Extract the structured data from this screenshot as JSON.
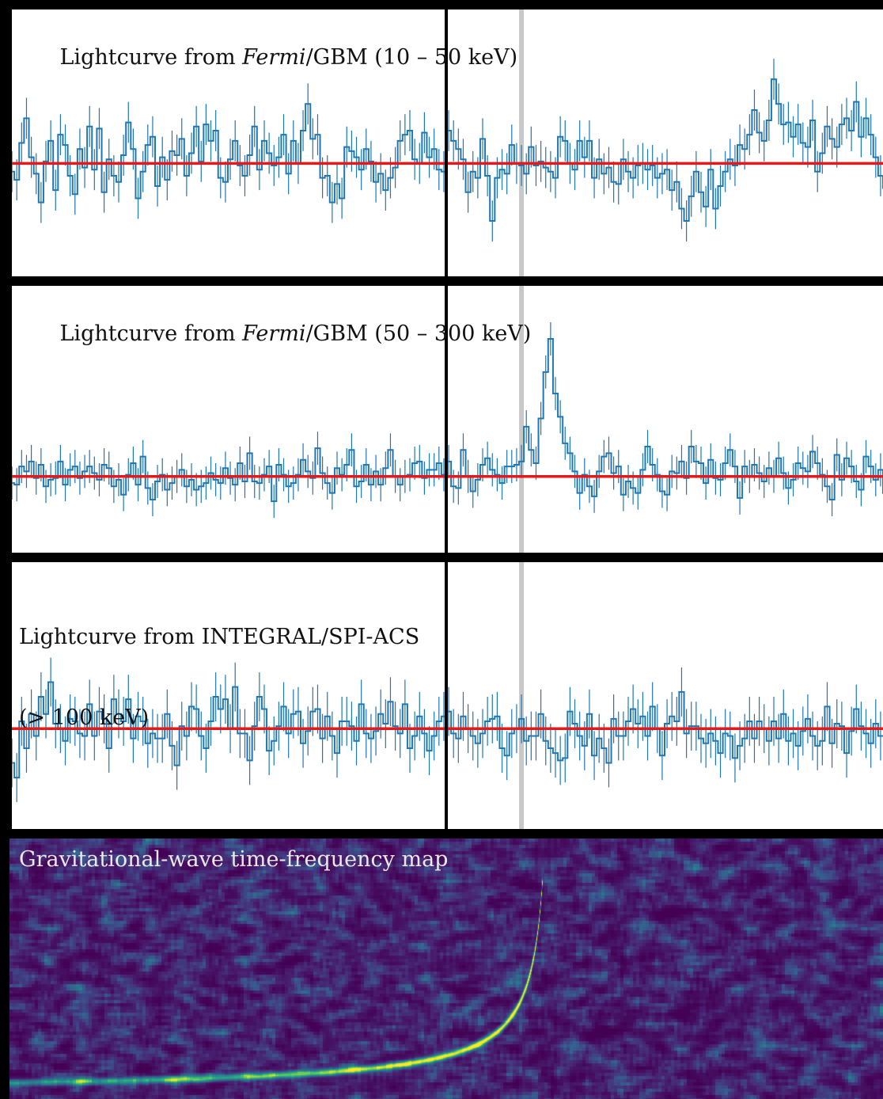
{
  "colors": {
    "lightcurve": "#1f77b4",
    "baseline": "#e31a1c",
    "event_marker": "#c8c8c8",
    "divider": "#000000",
    "frame": "#000000"
  },
  "chart_data": [
    {
      "type": "line",
      "instrument": "Fermi/GBM",
      "title": {
        "prefix": "Lightcurve from ",
        "italic": "Fermi",
        "suffix": "/GBM (10 – 50 keV)"
      },
      "xlabel": "",
      "ylabel": "",
      "grid": false,
      "n_bins": 180,
      "baseline": 0.0,
      "x_range": [
        0,
        180
      ],
      "y_range": [
        -5.5,
        7.5
      ],
      "t_boundary": 90,
      "t_event": 105.5,
      "series": [
        {
          "values": [
            -0.4,
            -0.8,
            1.0,
            2.2,
            0.3,
            -0.5,
            -1.9,
            0.1,
            1.1,
            -1.3,
            1.4,
            0.9,
            -0.6,
            -1.5,
            0.7,
            -0.2,
            1.8,
            -0.3,
            1.7,
            -1.4,
            0.2,
            -0.6,
            -0.9,
            0.4,
            2.0,
            0.7,
            -1.7,
            -0.4,
            0.9,
            1.3,
            -1.1,
            0.3,
            -0.8,
            0.6,
            0.4,
            1.2,
            -0.6,
            0.5,
            1.8,
            0.1,
            1.9,
            1.1,
            1.6,
            -0.7,
            -0.9,
            0.2,
            1.1,
            -0.1,
            -0.6,
            0.4,
            1.8,
            -0.3,
            1.1,
            0.5,
            -0.1,
            0.3,
            1.4,
            -0.5,
            1.1,
            0.0,
            1.6,
            2.9,
            1.2,
            1.4,
            -0.7,
            -0.6,
            -1.9,
            -1.0,
            -1.7,
            0.8,
            0.6,
            0.3,
            -0.3,
            0.7,
            0.1,
            -0.9,
            -0.5,
            -1.3,
            -0.7,
            -0.2,
            1.1,
            1.4,
            1.6,
            0.2,
            0.0,
            1.5,
            0.3,
            0.7,
            -0.3,
            -0.4,
            1.6,
            1.1,
            0.7,
            0.2,
            -1.4,
            -0.4,
            -0.7,
            1.2,
            -0.6,
            -2.8,
            -0.7,
            -0.3,
            -0.5,
            0.9,
            0.0,
            -0.1,
            -0.5,
            0.8,
            -0.1,
            0.1,
            -0.2,
            -0.4,
            -0.7,
            1.3,
            1.1,
            0.0,
            -0.3,
            1.1,
            0.3,
            1.1,
            -0.7,
            0.2,
            -0.5,
            -0.2,
            -0.9,
            -1.0,
            0.2,
            -0.4,
            -0.7,
            -0.1,
            0.0,
            -0.3,
            -0.1,
            -0.7,
            -0.5,
            -0.3,
            -1.3,
            -0.9,
            -2.2,
            -2.8,
            -1.6,
            -0.4,
            -1.4,
            -2.1,
            -0.3,
            -2.2,
            -1.1,
            -0.4,
            0.2,
            -0.1,
            0.9,
            0.7,
            1.4,
            2.6,
            1.5,
            1.1,
            2.1,
            4.1,
            2.9,
            1.9,
            2.0,
            1.3,
            1.9,
            1.0,
            0.8,
            2.1,
            -0.4,
            0.5,
            1.8,
            1.2,
            0.8,
            1.9,
            2.2,
            1.6,
            3.0,
            1.3,
            2.2,
            1.4,
            0.3,
            -0.6,
            -1.2,
            -0.1,
            0.7
          ]
        }
      ]
    },
    {
      "type": "line",
      "instrument": "Fermi/GBM",
      "title": {
        "prefix": "Lightcurve from ",
        "italic": "Fermi",
        "suffix": "/GBM (50 – 300 keV)"
      },
      "xlabel": "",
      "ylabel": "",
      "grid": false,
      "n_bins": 180,
      "baseline": 0.0,
      "x_range": [
        0,
        180
      ],
      "y_range": [
        -4.6,
        11.5
      ],
      "t_boundary": 90,
      "t_event": 105.5,
      "series": [
        {
          "values": [
            -0.4,
            -0.5,
            0.6,
            0.3,
            0.9,
            -0.1,
            0.7,
            -0.6,
            -0.2,
            -0.1,
            0.9,
            -0.5,
            0.4,
            0.6,
            -0.1,
            0.3,
            0.6,
            0.2,
            -0.2,
            0.7,
            0.5,
            -0.6,
            -0.2,
            -1.1,
            0.1,
            0.8,
            -0.5,
            1.2,
            -0.7,
            -1.4,
            -0.3,
            0.1,
            -0.8,
            -0.4,
            0.0,
            0.4,
            -0.6,
            -0.2,
            -0.8,
            -0.6,
            -0.4,
            0.2,
            -0.2,
            -0.4,
            0.5,
            -0.1,
            -0.5,
            0.8,
            -0.3,
            1.4,
            -0.3,
            -0.4,
            0.1,
            0.6,
            -1.5,
            0.7,
            0.1,
            -0.6,
            -0.4,
            0.1,
            1.0,
            0.3,
            -0.1,
            1.7,
            0.2,
            -0.4,
            -1.0,
            0.5,
            0.1,
            0.7,
            1.6,
            -0.6,
            -0.3,
            0.7,
            -0.5,
            0.3,
            -0.5,
            0.5,
            1.6,
            0.0,
            -0.5,
            0.0,
            0.1,
            0.8,
            0.9,
            -0.1,
            0.4,
            0.4,
            0.8,
            0.1,
            0.9,
            -0.6,
            -0.7,
            1.6,
            0.0,
            -0.9,
            -0.2,
            0.7,
            1.1,
            0.4,
            0.1,
            -0.4,
            0.6,
            0.6,
            0.7,
            0.9,
            3.0,
            1.6,
            0.8,
            3.5,
            6.3,
            8.3,
            5.0,
            3.6,
            2.0,
            1.4,
            0.3,
            -1.0,
            0.1,
            -0.6,
            -1.2,
            0.3,
            1.2,
            1.4,
            0.2,
            0.6,
            -1.1,
            -0.3,
            -0.7,
            -1.0,
            0.4,
            1.8,
            0.7,
            0.1,
            -0.9,
            -1.1,
            0.3,
            0.2,
            0.9,
            -0.1,
            1.8,
            0.9,
            0.8,
            -0.4,
            1.0,
            -0.1,
            -0.2,
            0.8,
            1.6,
            0.6,
            -1.3,
            0.6,
            0.0,
            0.7,
            0.2,
            -0.3,
            0.5,
            0.0,
            1.1,
            0.2,
            -0.7,
            -0.2,
            0.8,
            0.5,
            0.3,
            1.5,
            0.8,
            0.1,
            -0.6,
            -1.4,
            1.3,
            -0.2,
            1.1,
            0.6,
            -0.3,
            -0.8,
            1.2,
            0.6,
            -0.2,
            0.4,
            -1.0,
            1.2
          ]
        }
      ]
    },
    {
      "type": "line",
      "instrument": "INTEGRAL/SPI-ACS",
      "title": {
        "line1": "Lightcurve from INTEGRAL/SPI-ACS",
        "line2": "(> 100 keV)"
      },
      "xlabel": "",
      "ylabel": "",
      "grid": false,
      "n_bins": 180,
      "baseline": 0.0,
      "x_range": [
        0,
        180
      ],
      "y_range": [
        -4.1,
        6.8
      ],
      "t_boundary": 90,
      "t_event": 105.5,
      "series": [
        {
          "values": [
            -1.4,
            -2.0,
            0.3,
            -0.8,
            0.6,
            -0.3,
            1.3,
            0.6,
            1.9,
            0.2,
            0.0,
            -0.5,
            0.4,
            0.3,
            -0.2,
            -0.3,
            1.0,
            -0.3,
            0.7,
            0.4,
            -0.8,
            1.2,
            0.6,
            0.3,
            1.2,
            -0.4,
            0.5,
            0.3,
            -0.6,
            -0.2,
            -0.4,
            -0.4,
            0.6,
            -0.7,
            -1.5,
            0.1,
            -0.3,
            0.9,
            0.8,
            -0.3,
            -0.8,
            0.3,
            1.3,
            0.8,
            1.2,
            0.0,
            1.7,
            -0.2,
            -0.2,
            -1.3,
            0.1,
            1.3,
            0.8,
            -0.9,
            -0.5,
            0.1,
            0.9,
            -0.2,
            0.6,
            0.7,
            -0.6,
            -0.1,
            0.7,
            0.8,
            -0.4,
            0.5,
            -0.3,
            -1.0,
            0.3,
            0.3,
            0.1,
            -0.5,
            1.0,
            -0.2,
            -0.4,
            -0.1,
            0.6,
            0.2,
            1.1,
            0.1,
            -0.2,
            1.0,
            -0.8,
            -0.3,
            0.5,
            -0.2,
            -0.9,
            -0.3,
            0.3,
            0.5,
            0.7,
            -0.2,
            -0.4,
            0.5,
            0.0,
            -0.3,
            -0.6,
            -0.2,
            0.3,
            0.4,
            0.5,
            -0.8,
            -1.1,
            -0.2,
            0.0,
            0.4,
            -0.5,
            -0.3,
            -0.3,
            0.6,
            -0.5,
            -0.8,
            -1.0,
            -1.3,
            -1.2,
            0.7,
            0.2,
            -0.3,
            -0.7,
            0.6,
            -1.1,
            -0.4,
            -0.8,
            -1.4,
            0.4,
            -0.3,
            -0.3,
            0.3,
            0.8,
            0.2,
            0.5,
            -0.3,
            0.9,
            0.0,
            -1.1,
            0.2,
            0.5,
            0.3,
            1.5,
            -0.2,
            0.1,
            0.1,
            -0.4,
            -0.6,
            -0.2,
            -0.5,
            -1.0,
            -0.2,
            -0.3,
            -1.2,
            -0.7,
            -0.4,
            0.3,
            -0.4,
            0.3,
            0.0,
            -0.5,
            0.3,
            -0.4,
            0.6,
            -0.5,
            -0.2,
            -0.7,
            -0.1,
            0.4,
            -0.3,
            -0.7,
            -0.5,
            0.9,
            -0.6,
            0.2,
            0.1,
            -1.0,
            -0.1,
            0.8,
            0.1,
            -0.2,
            -0.6,
            0.2,
            -0.3
          ]
        }
      ]
    },
    {
      "type": "heatmap",
      "title": "Gravitational-wave time-frequency map",
      "xlabel": "",
      "ylabel": "",
      "colormap": "viridis",
      "chirp": {
        "t_start": 0.0,
        "t_merger": 0.61,
        "f_min": 0.02,
        "f_max": 0.85,
        "peak_intensity": 1.0
      }
    }
  ]
}
